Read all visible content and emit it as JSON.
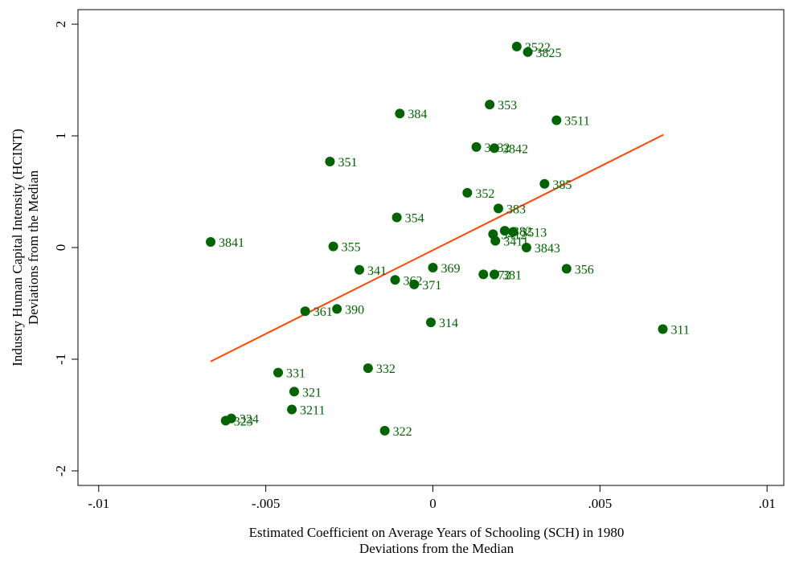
{
  "chart_data": {
    "type": "scatter",
    "xlabel": [
      "Estimated Coefficient on Average Years of Schooling (SCH) in 1980",
      "Deviations from the Median"
    ],
    "ylabel": [
      "Industry Human Capital Intensity (HCINT)",
      "Deviations from the Median"
    ],
    "xlim": [
      -0.01062,
      0.0105
    ],
    "ylim": [
      -2.13,
      2.13
    ],
    "xticks": [
      {
        "value": -0.01,
        "label": "-.01"
      },
      {
        "value": -0.005,
        "label": "-.005"
      },
      {
        "value": 0,
        "label": "0"
      },
      {
        "value": 0.005,
        "label": ".005"
      },
      {
        "value": 0.01,
        "label": ".01"
      }
    ],
    "yticks": [
      -2,
      -1,
      0,
      1,
      2
    ],
    "series": [
      {
        "color": "#006400",
        "labels": [
          "3522",
          "3825",
          "353",
          "384",
          "3511",
          "3832",
          "3842",
          "351",
          "385",
          "352",
          "383",
          "354",
          "3841",
          "355",
          "382",
          "3412",
          "3513",
          "3411",
          "3843",
          "356",
          "369",
          "341",
          "362",
          "371",
          "372",
          "381",
          "361",
          "390",
          "314",
          "311",
          "332",
          "331",
          "321",
          "3211",
          "322",
          "324",
          "323"
        ],
        "x": [
          0.00251,
          0.00284,
          0.0017,
          -0.00099,
          0.0037,
          0.0013,
          0.00184,
          -0.00308,
          0.00334,
          0.00103,
          0.00196,
          -0.00108,
          -0.00665,
          -0.00298,
          0.00215,
          0.0018,
          0.0024,
          0.00187,
          0.0028,
          0.004,
          0.0,
          -0.0022,
          -0.00113,
          -0.00056,
          0.00151,
          0.00184,
          -0.00382,
          -0.00287,
          -6e-05,
          0.00688,
          -0.00194,
          -0.00463,
          -0.00415,
          -0.00422,
          -0.00144,
          -0.00603,
          -0.0062
        ],
        "values": [
          1.8,
          1.75,
          1.28,
          1.2,
          1.14,
          0.9,
          0.89,
          0.77,
          0.57,
          0.49,
          0.35,
          0.27,
          0.05,
          0.01,
          0.15,
          0.12,
          0.14,
          0.06,
          0.0,
          -0.19,
          -0.18,
          -0.2,
          -0.29,
          -0.33,
          -0.24,
          -0.24,
          -0.57,
          -0.55,
          -0.67,
          -0.73,
          -1.08,
          -1.12,
          -1.29,
          -1.45,
          -1.64,
          -1.53,
          -1.55
        ]
      }
    ],
    "fit_line": {
      "color": "#ff4500",
      "x": [
        -0.00665,
        0.0069
      ],
      "values": [
        -1.02,
        1.01
      ]
    }
  }
}
